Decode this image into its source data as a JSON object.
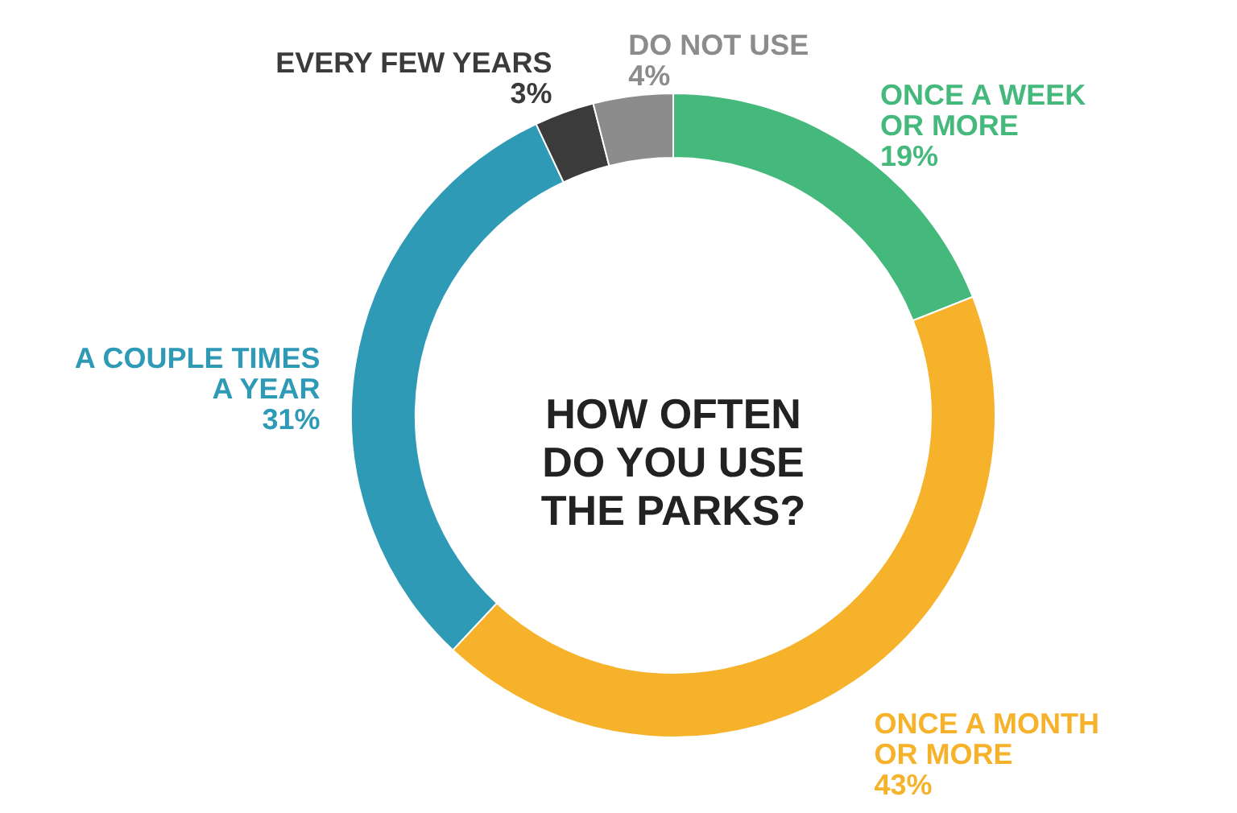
{
  "chart_data": {
    "type": "donut",
    "title": "HOW OFTEN\nDO YOU USE\nTHE PARKS?",
    "categories": [
      "ONCE A WEEK\nOR MORE",
      "ONCE A MONTH\nOR MORE",
      "A COUPLE TIMES\nA YEAR",
      "EVERY FEW YEARS",
      "DO NOT USE"
    ],
    "values": [
      19,
      43,
      31,
      3,
      4
    ],
    "value_labels": [
      "19%",
      "43%",
      "31%",
      "3%",
      "4%"
    ],
    "colors": [
      "#45b97c",
      "#f6b22b",
      "#2e9ab6",
      "#3b3b3b",
      "#8c8c8c"
    ]
  }
}
